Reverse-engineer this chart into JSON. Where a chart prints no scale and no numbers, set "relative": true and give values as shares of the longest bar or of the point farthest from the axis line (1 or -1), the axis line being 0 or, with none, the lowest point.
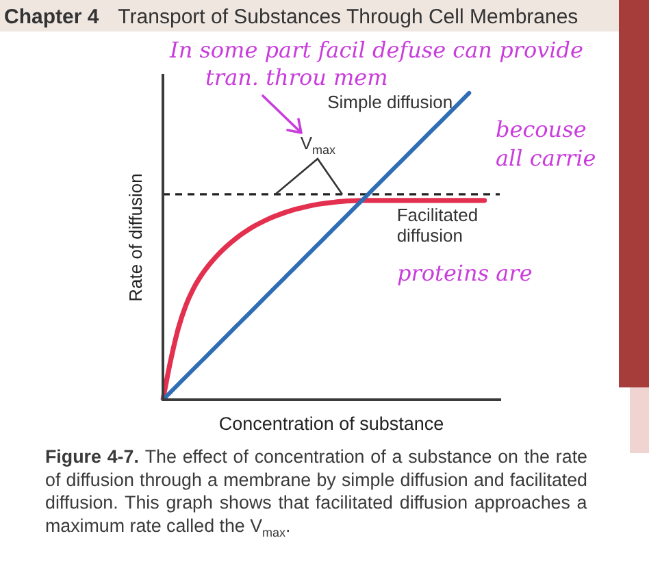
{
  "chart_data": {
    "type": "line",
    "relative": true,
    "title": "Chapter 4 Transport of Substances Through Cell Membranes",
    "xlabel": "Concentration of substance",
    "ylabel": "Rate of diffusion",
    "categories": [
      null,
      null,
      null,
      null,
      null,
      null,
      null,
      null,
      null,
      null,
      null,
      null,
      null,
      null,
      null,
      null,
      null,
      null,
      null,
      null,
      null,
      null,
      null,
      null,
      null,
      null,
      null,
      null,
      null,
      null,
      null,
      null,
      null,
      null,
      null,
      null,
      null,
      null,
      null,
      null,
      null,
      null,
      null,
      null,
      null
    ],
    "series": [
      {
        "name": "Simple diffusion",
        "color": "#2f6db5",
        "values": [
          0,
          0.025,
          0.05,
          0.075,
          0.1,
          0.125,
          0.15,
          0.175,
          0.2,
          0.225,
          0.25,
          0.275,
          0.3,
          0.325,
          0.35,
          0.375,
          0.4,
          0.425,
          0.45,
          0.475,
          0.5,
          0.525,
          0.55,
          0.575,
          0.6,
          0.625,
          0.65,
          0.675,
          0.7,
          0.725,
          0.75,
          0.775,
          0.8,
          0.825,
          0.85,
          0.875,
          0.9,
          0.925,
          0.95,
          0.975,
          1,
          null,
          null,
          null,
          null
        ]
      },
      {
        "name": "Facilitated diffusion",
        "color": "#e3304f",
        "values": [
          0,
          0.127,
          0.232,
          0.308,
          0.363,
          0.405,
          0.439,
          0.468,
          0.493,
          0.515,
          0.535,
          0.552,
          0.567,
          0.58,
          0.592,
          0.602,
          0.611,
          0.619,
          0.625,
          0.631,
          0.636,
          0.64,
          0.643,
          0.646,
          0.648,
          0.649,
          0.65,
          0.65,
          0.65,
          0.65,
          0.65,
          0.65,
          0.65,
          0.65,
          0.65,
          0.65,
          0.65,
          0.65,
          0.65,
          0.65,
          0.65,
          0.65,
          0.65,
          null,
          null
        ]
      }
    ],
    "ref_lines": [
      {
        "axis": "y",
        "value": 0.67,
        "label": "V$_{max}$",
        "line_style": "dashed",
        "color": "#222222"
      }
    ],
    "marker": "none",
    "annotations": [
      "Figure 4-7. The effect of concentration of a substance on the rate of diffusion through a membrane by simple diffusion and facilitated diffusion. This graph shows that facilitated diffusion approaches a maximum rate called the V$_{max}$.",
      "In some part facil defuse can provide tran. throu mem becouse all carrie proteins are"
    ]
  }
}
